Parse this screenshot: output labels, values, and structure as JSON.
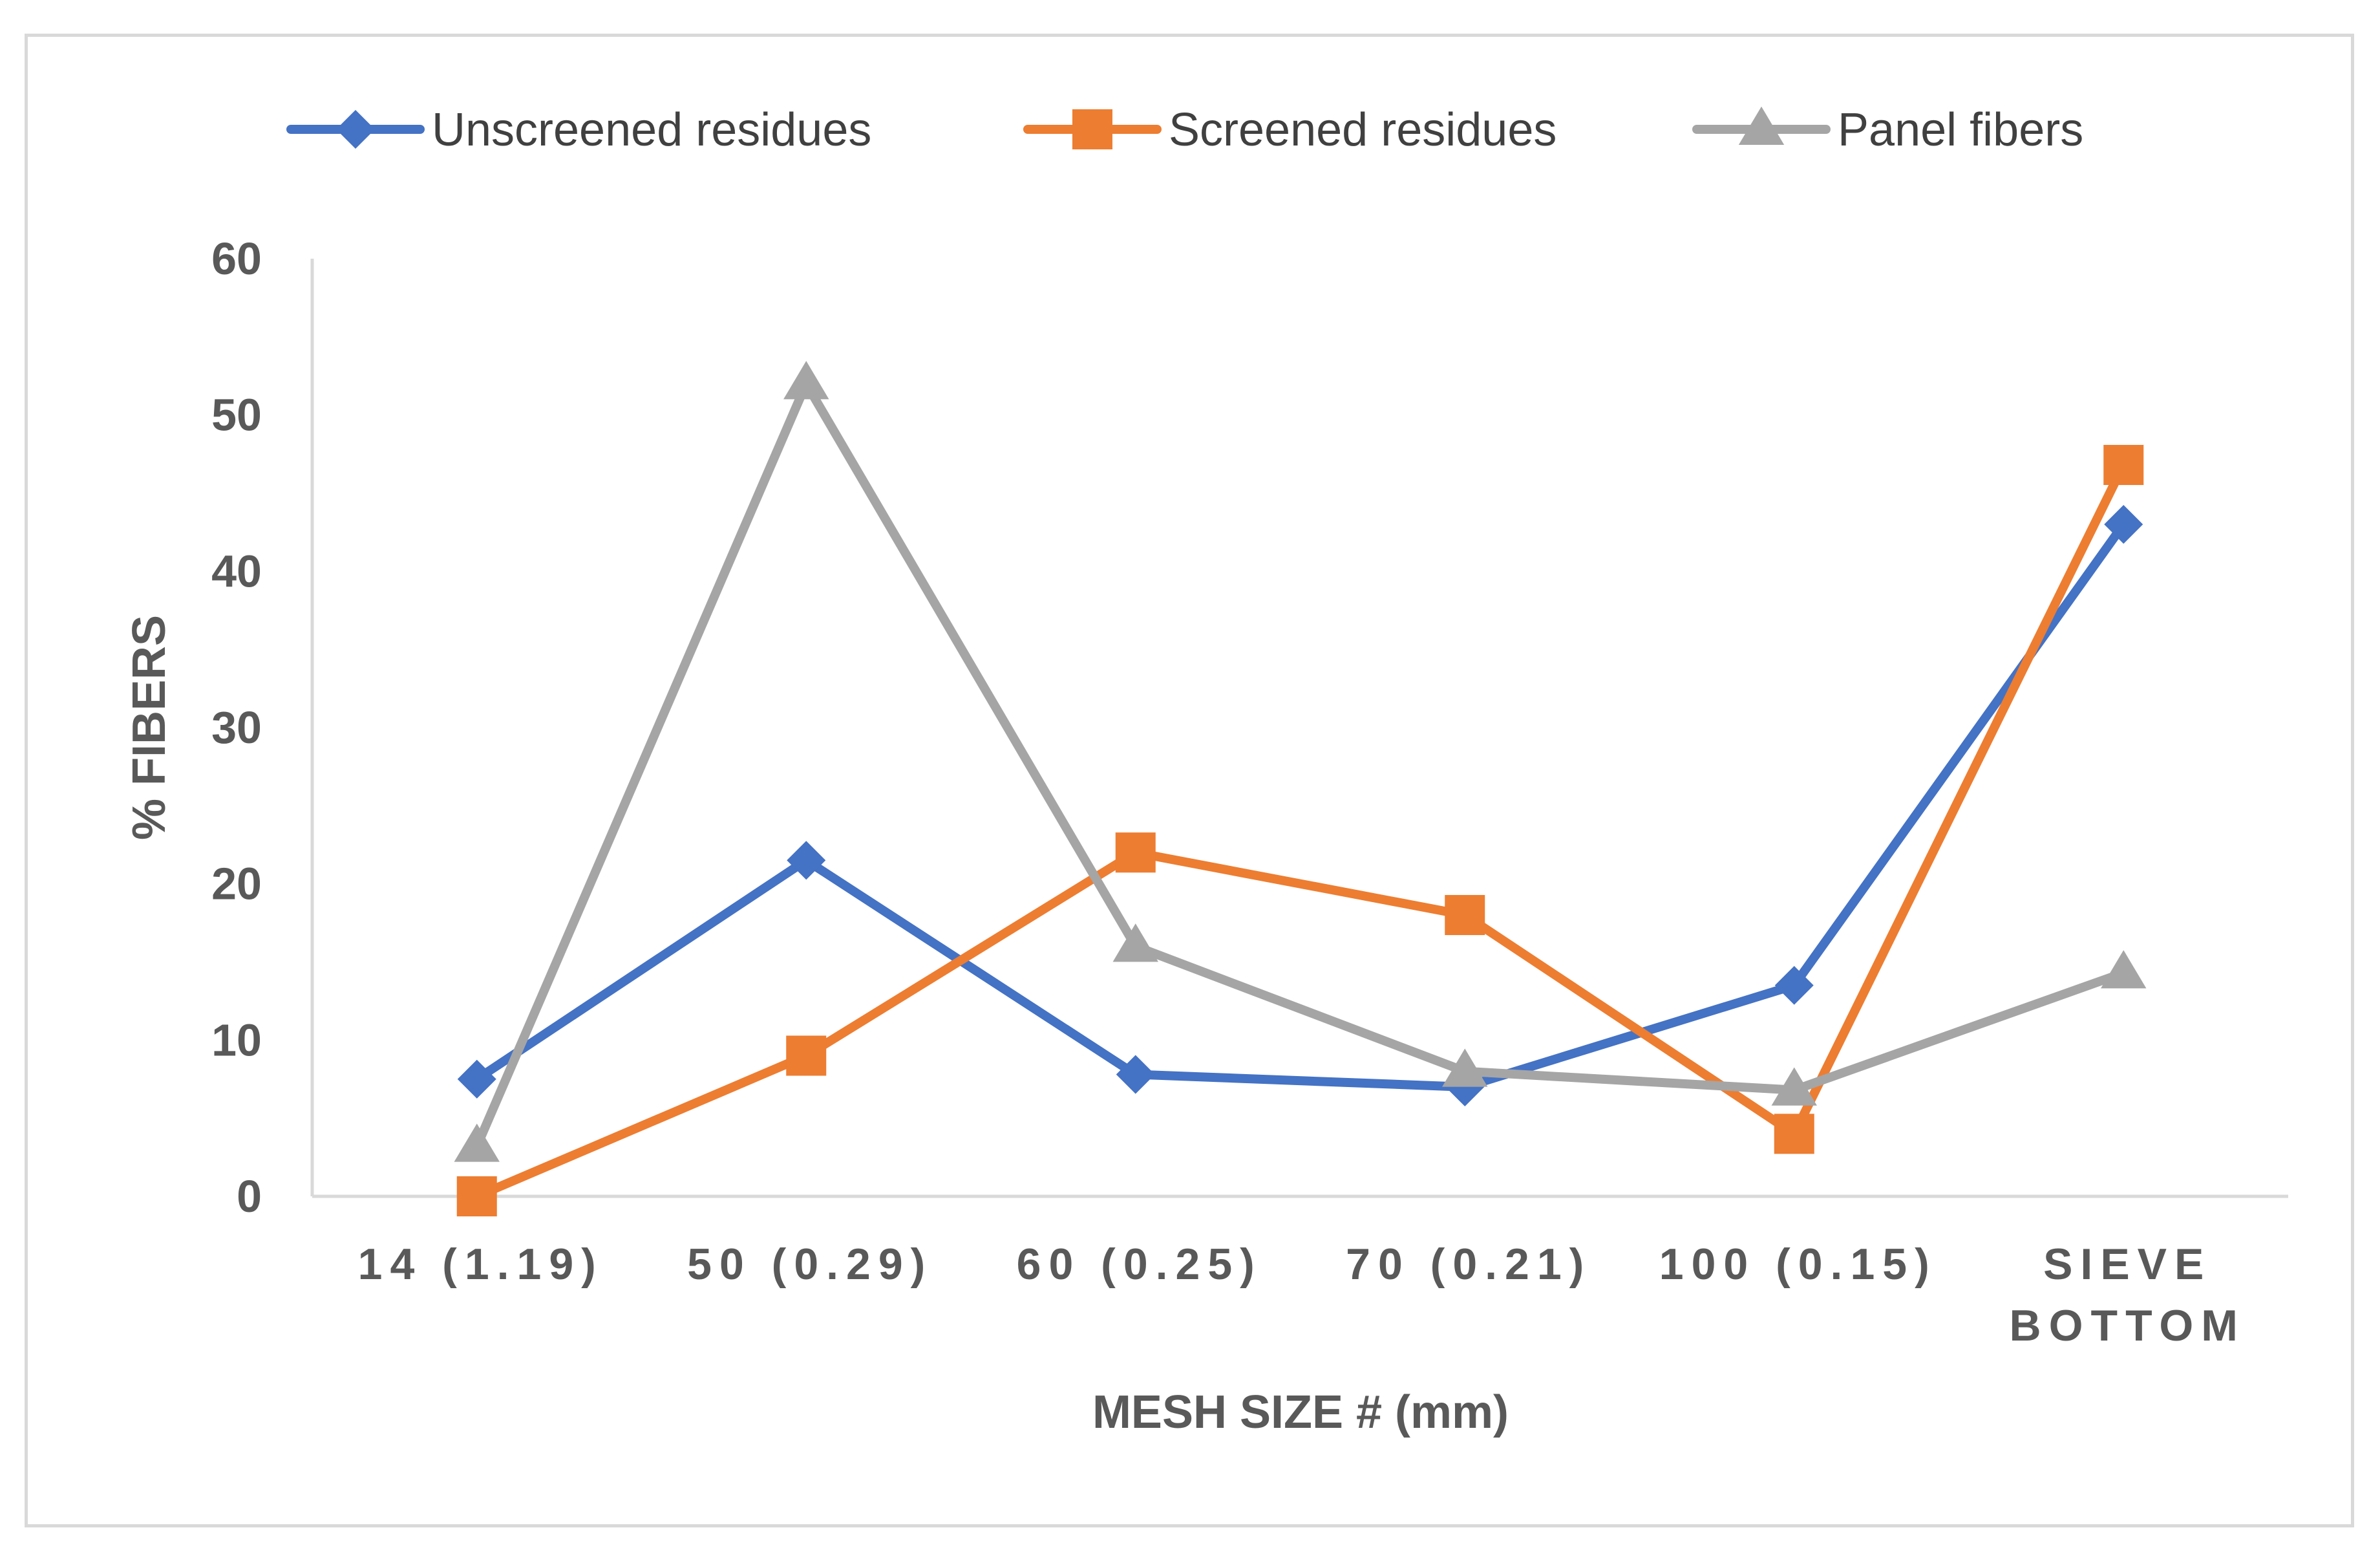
{
  "chart_data": {
    "type": "line",
    "title": "",
    "xlabel": "MESH SIZE # (mm)",
    "ylabel": "% FIBERS",
    "ylim": [
      0,
      60
    ],
    "yticks": [
      "0",
      "10",
      "20",
      "30",
      "40",
      "50",
      "60"
    ],
    "yticks_values": [
      0,
      10,
      20,
      30,
      40,
      50,
      60
    ],
    "categories": [
      [
        "14 (1.19)"
      ],
      [
        "50 (0.29)"
      ],
      [
        "60 (0.25)"
      ],
      [
        "70 (0.21)"
      ],
      [
        "100 (0.15)"
      ],
      [
        "SIEVE",
        "BOTTOM"
      ]
    ],
    "legend_position": "top",
    "grid": false,
    "series": [
      {
        "name": "Unscreened residues",
        "color": "#4472C4",
        "marker": "diamond",
        "values": [
          7.5,
          21.5,
          7.8,
          7.0,
          13.5,
          43.0
        ]
      },
      {
        "name": "Screened residues",
        "color": "#ED7D31",
        "marker": "square",
        "values": [
          0,
          9.0,
          22.0,
          18.0,
          4.0,
          46.8
        ]
      },
      {
        "name": "Panel fibers",
        "color": "#A5A5A5",
        "marker": "triangle",
        "values": [
          3.2,
          52.0,
          16.0,
          8.0,
          6.8,
          14.3
        ]
      }
    ]
  }
}
